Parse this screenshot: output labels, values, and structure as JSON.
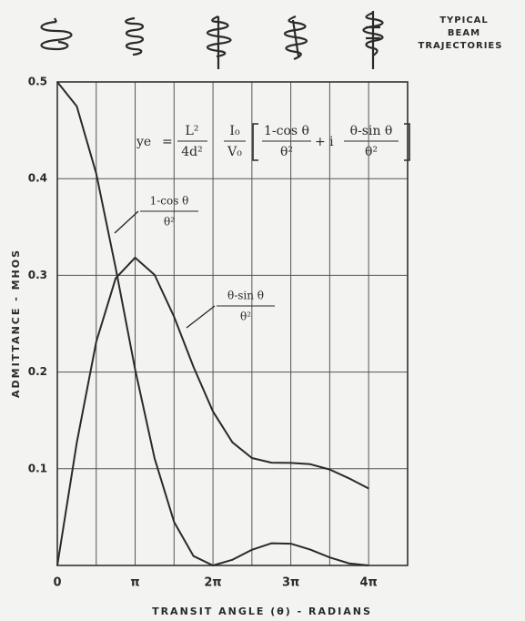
{
  "chart_data": {
    "type": "line",
    "x_label": "TRANSIT ANGLE (θ) - RADIANS",
    "y_label": "ADMITTANCE - MHOS",
    "note": [
      "TYPICAL",
      "BEAM",
      "TRAJECTORIES"
    ],
    "formula": {
      "lhs": "ye",
      "eq": "=",
      "a_num": "L²",
      "a_den": "4d²",
      "b_num": "I₀",
      "b_den": "V₀",
      "c_num": "1-cos θ",
      "c_den": "θ²",
      "plus": "+ i",
      "d_num": "θ-sin θ",
      "d_den": "θ²"
    },
    "x": [
      0,
      0.7854,
      1.5708,
      2.3562,
      3.1416,
      3.927,
      4.7124,
      5.4978,
      6.2832,
      7.0686,
      7.854,
      8.6394,
      9.4248,
      10.2102,
      10.9956,
      11.781,
      12.5664
    ],
    "series": [
      {
        "label": {
          "num": "1-cos θ",
          "den": "θ²"
        },
        "color": "#2a2a2a",
        "values": [
          0.5,
          0.4748,
          0.4053,
          0.3075,
          0.2026,
          0.1107,
          0.045,
          0.0097,
          0,
          0.0059,
          0.0162,
          0.0229,
          0.0225,
          0.0164,
          0.0083,
          0.0021,
          0
        ]
      },
      {
        "label": {
          "num": "θ-sin θ",
          "den": "θ²"
        },
        "color": "#2a2a2a",
        "values": [
          0,
          0.1269,
          0.2313,
          0.297,
          0.3183,
          0.3005,
          0.2572,
          0.2053,
          0.1592,
          0.1273,
          0.1111,
          0.1063,
          0.1061,
          0.1047,
          0.0992,
          0.09,
          0.0796
        ]
      }
    ],
    "xlim": [
      0,
      14.14
    ],
    "xticks": [
      0,
      {
        "value": 3.1416,
        "label": "π"
      },
      {
        "value": 6.2832,
        "label": "2π"
      },
      {
        "value": 9.4248,
        "label": "3π"
      },
      {
        "value": 12.5664,
        "label": "4π"
      }
    ],
    "ylim": [
      0,
      0.5
    ],
    "yticks": [
      0.1,
      0.2,
      0.3,
      0.4,
      0.5
    ],
    "grid": true
  }
}
